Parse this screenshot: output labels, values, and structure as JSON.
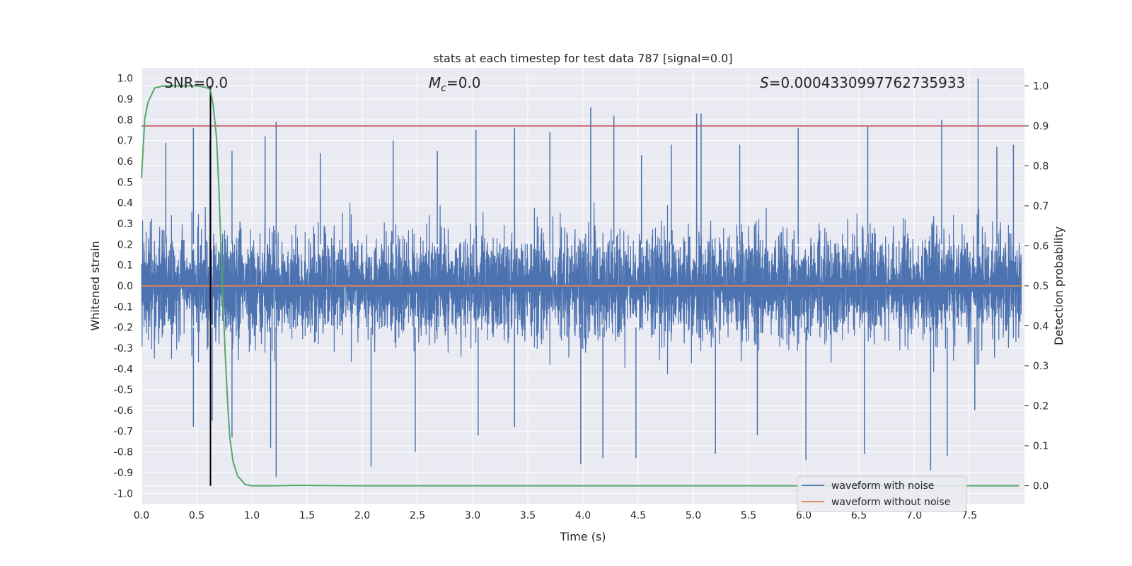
{
  "chart_data": {
    "type": "line",
    "title": "stats at each timestep for test data 787 [signal=0.0]",
    "xlabel": "Time (s)",
    "ylabel": "Whitened strain",
    "y2label": "Detection probability",
    "xlim": [
      0.0,
      8.0
    ],
    "ylim": [
      -1.05,
      1.05
    ],
    "y2lim": [
      -0.045,
      1.045
    ],
    "x_ticks": [
      "0.0",
      "0.5",
      "1.0",
      "1.5",
      "2.0",
      "2.5",
      "3.0",
      "3.5",
      "4.0",
      "4.5",
      "5.0",
      "5.5",
      "6.0",
      "6.5",
      "7.0",
      "7.5"
    ],
    "y_ticks": [
      "-1.0",
      "-0.9",
      "-0.8",
      "-0.7",
      "-0.6",
      "-0.5",
      "-0.4",
      "-0.3",
      "-0.2",
      "-0.1",
      "0.0",
      "0.1",
      "0.2",
      "0.3",
      "0.4",
      "0.5",
      "0.6",
      "0.7",
      "0.8",
      "0.9",
      "1.0"
    ],
    "y2_ticks": [
      "0.0",
      "0.1",
      "0.2",
      "0.3",
      "0.4",
      "0.5",
      "0.6",
      "0.7",
      "0.8",
      "0.9",
      "1.0"
    ],
    "annotations": {
      "snr": "SNR=0.0",
      "mc_symbol": "M",
      "mc_sub": "c",
      "mc_value": "=0.0",
      "s_symbol": "S",
      "s_value": "=0.0004330997762735933"
    },
    "legend": {
      "placement": "bottom-right",
      "entries": [
        "waveform with noise",
        "waveform without noise"
      ]
    },
    "colors": {
      "noise": "#4c72b0",
      "clean": "#dd8452",
      "probability": "#55a868",
      "threshold": "#c44e52",
      "marker": "#000000",
      "background": "#eaeaf2",
      "grid": "#ffffff"
    },
    "series": [
      {
        "name": "waveform with noise",
        "description": "whitened noisy strain, amplitude mostly within ±0.55 with peaks to 1.0 near 7.58 s",
        "peak_pos": [
          [
            0.22,
            0.69
          ],
          [
            0.47,
            0.76
          ],
          [
            0.62,
            0.7
          ],
          [
            0.82,
            0.65
          ],
          [
            1.12,
            0.72
          ],
          [
            1.22,
            0.79
          ],
          [
            1.62,
            0.64
          ],
          [
            2.28,
            0.7
          ],
          [
            2.68,
            0.65
          ],
          [
            3.03,
            0.75
          ],
          [
            3.38,
            0.76
          ],
          [
            3.7,
            0.74
          ],
          [
            4.07,
            0.86
          ],
          [
            4.28,
            0.82
          ],
          [
            4.53,
            0.63
          ],
          [
            4.8,
            0.68
          ],
          [
            5.03,
            0.83
          ],
          [
            5.07,
            0.83
          ],
          [
            5.42,
            0.68
          ],
          [
            5.95,
            0.76
          ],
          [
            6.58,
            0.77
          ],
          [
            7.25,
            0.8
          ],
          [
            7.58,
            1.0
          ],
          [
            7.75,
            0.67
          ],
          [
            7.9,
            0.68
          ]
        ],
        "peak_neg": [
          [
            0.47,
            -0.68
          ],
          [
            0.64,
            -0.65
          ],
          [
            0.82,
            -0.73
          ],
          [
            1.17,
            -0.78
          ],
          [
            1.22,
            -0.92
          ],
          [
            2.08,
            -0.87
          ],
          [
            2.48,
            -0.8
          ],
          [
            3.05,
            -0.72
          ],
          [
            3.38,
            -0.68
          ],
          [
            3.98,
            -0.86
          ],
          [
            4.18,
            -0.83
          ],
          [
            4.48,
            -0.83
          ],
          [
            5.2,
            -0.81
          ],
          [
            5.58,
            -0.72
          ],
          [
            6.02,
            -0.84
          ],
          [
            6.55,
            -0.81
          ],
          [
            7.15,
            -0.89
          ],
          [
            7.3,
            -0.82
          ],
          [
            7.55,
            -0.6
          ]
        ]
      },
      {
        "name": "waveform without noise",
        "x": [
          0.0,
          8.0
        ],
        "y": [
          0.0,
          0.0
        ]
      },
      {
        "name": "detection probability",
        "axis": "right",
        "x": [
          0.0,
          0.03,
          0.06,
          0.12,
          0.2,
          0.3,
          0.4,
          0.5,
          0.55,
          0.6,
          0.625,
          0.65,
          0.68,
          0.7,
          0.72,
          0.74,
          0.76,
          0.78,
          0.8,
          0.83,
          0.87,
          0.94,
          1.0,
          1.2,
          1.4,
          2.0,
          4.0,
          6.0,
          7.95
        ],
        "y": [
          0.77,
          0.92,
          0.96,
          0.995,
          1.0,
          1.0,
          1.0,
          1.0,
          0.998,
          0.995,
          0.99,
          0.95,
          0.87,
          0.75,
          0.6,
          0.45,
          0.32,
          0.21,
          0.12,
          0.06,
          0.025,
          0.003,
          0.0,
          0.0,
          0.001,
          0.0,
          0.0,
          0.0,
          0.0
        ]
      }
    ],
    "threshold_right": 0.9,
    "marker_x": 0.625
  }
}
